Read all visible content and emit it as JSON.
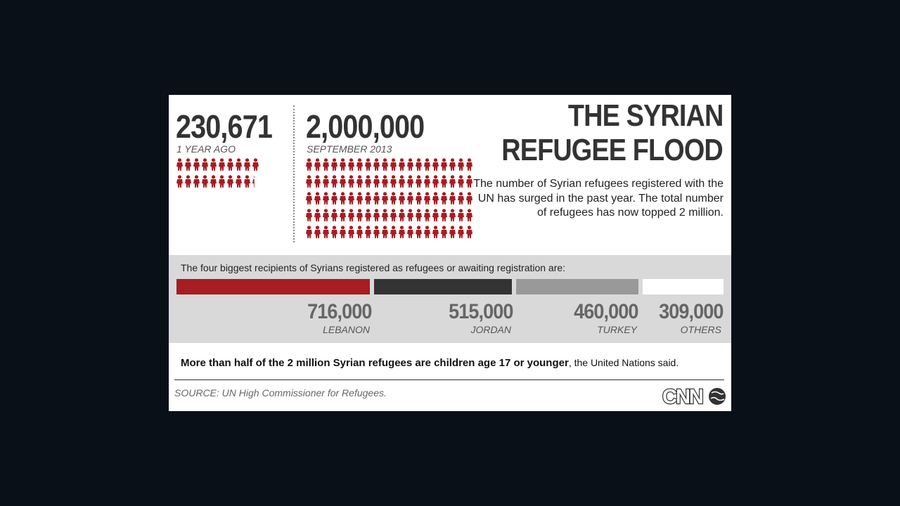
{
  "title_line1": "THE SYRIAN",
  "title_line2": "REFUGEE FLOOD",
  "description": "The number of Syrian refugees registered with the UN has surged in the past year. The total number of refugees has now topped 2 million.",
  "stats": [
    {
      "value": "230,671",
      "label": "1 YEAR AGO"
    },
    {
      "value": "2,000,000",
      "label": "SEPTEMBER 2013"
    }
  ],
  "chart_data": {
    "type": "bar",
    "orientation": "horizontal-stacked",
    "title": "The four biggest recipients of Syrians registered as refugees or awaiting registration are:",
    "categories": [
      "LEBANON",
      "JORDAN",
      "TURKEY",
      "OTHERS"
    ],
    "values": [
      716000,
      515000,
      460000,
      309000
    ],
    "value_labels": [
      "716,000",
      "515,000",
      "460,000",
      "309,000"
    ],
    "colors": [
      "#a61d22",
      "#333333",
      "#999999",
      "#ffffff"
    ]
  },
  "pictogram": {
    "icon": "person-icon",
    "color": "#a61d22",
    "left_icon_count": 19.3,
    "right_icon_count": 100
  },
  "footnote_bold": "More than half of the 2 million Syrian refugees are children age 17 or younger",
  "footnote_rest": ", the United Nations said.",
  "source": "SOURCE: UN High Commissioner for Refugees.",
  "logo_text": "CNN",
  "colors": {
    "accent": "#a61d22",
    "background": "#0a1018",
    "card": "#ffffff",
    "band": "#d9d9d9"
  }
}
